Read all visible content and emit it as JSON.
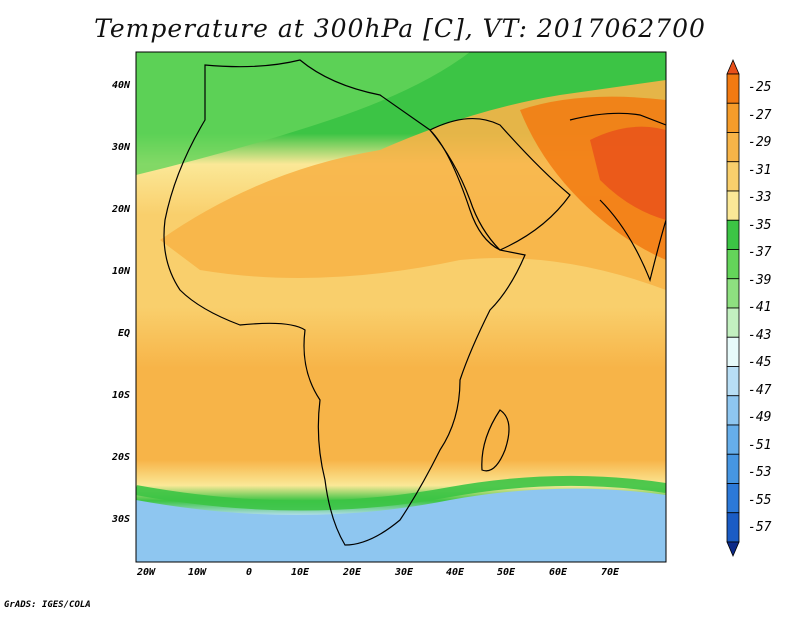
{
  "title": "Temperature at 300hPa [C], VT: 2017062700",
  "credit": "GrADS: IGES/COLA",
  "axes": {
    "y_ticks": [
      "40N",
      "30N",
      "20N",
      "10N",
      "EQ",
      "10S",
      "20S",
      "30S"
    ],
    "x_ticks": [
      "20W",
      "10W",
      "0",
      "10E",
      "20E",
      "30E",
      "40E",
      "50E",
      "60E",
      "70E"
    ]
  },
  "colorbar": {
    "labels": [
      "-25",
      "-27",
      "-29",
      "-31",
      "-33",
      "-35",
      "-37",
      "-39",
      "-41",
      "-43",
      "-45",
      "-47",
      "-49",
      "-51",
      "-53",
      "-55",
      "-57"
    ],
    "colors": [
      "#e8501a",
      "#f27a12",
      "#f59c2a",
      "#f7b448",
      "#f9cf6c",
      "#fbe897",
      "#3cc445",
      "#64d45a",
      "#8ee080",
      "#c3f0c0",
      "#e7fafa",
      "#b8def5",
      "#8ec6f0",
      "#66aeea",
      "#4696e2",
      "#2c79d8",
      "#1a5cc4",
      "#0c2a88"
    ]
  },
  "map": {
    "region": "Africa and Middle East",
    "lon_range": [
      -23,
      80
    ],
    "lat_range": [
      -37,
      45
    ]
  }
}
